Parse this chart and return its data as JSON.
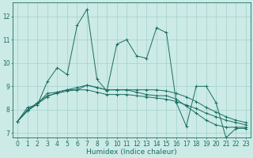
{
  "x": [
    0,
    1,
    2,
    3,
    4,
    5,
    6,
    7,
    8,
    9,
    10,
    11,
    12,
    13,
    14,
    15,
    16,
    17,
    18,
    19,
    20,
    21,
    22,
    23
  ],
  "line1": [
    7.5,
    8.1,
    8.2,
    9.2,
    9.8,
    9.5,
    11.6,
    12.3,
    9.3,
    8.8,
    10.8,
    11.0,
    10.3,
    10.2,
    11.5,
    11.3,
    8.3,
    7.3,
    9.0,
    9.0,
    8.3,
    6.8,
    7.2,
    7.2
  ],
  "line2": [
    7.5,
    8.0,
    8.3,
    8.6,
    8.7,
    8.8,
    8.85,
    8.85,
    8.75,
    8.65,
    8.65,
    8.65,
    8.6,
    8.55,
    8.5,
    8.45,
    8.35,
    8.2,
    8.05,
    7.85,
    7.7,
    7.55,
    7.45,
    7.35
  ],
  "line3": [
    7.5,
    7.95,
    8.25,
    8.7,
    8.75,
    8.85,
    8.95,
    9.05,
    8.95,
    8.85,
    8.85,
    8.85,
    8.85,
    8.85,
    8.85,
    8.8,
    8.7,
    8.55,
    8.35,
    8.1,
    7.9,
    7.7,
    7.55,
    7.45
  ],
  "line4": [
    7.5,
    7.95,
    8.25,
    8.55,
    8.75,
    8.85,
    8.85,
    9.05,
    8.95,
    8.85,
    8.85,
    8.85,
    8.75,
    8.65,
    8.6,
    8.6,
    8.45,
    8.15,
    7.85,
    7.55,
    7.35,
    7.25,
    7.25,
    7.25
  ],
  "color": "#1a6e62",
  "bg_color": "#cceae6",
  "grid_color": "#99ccc7",
  "ylim": [
    6.8,
    12.6
  ],
  "yticks": [
    7,
    8,
    9,
    10,
    11,
    12
  ],
  "xticks": [
    0,
    1,
    2,
    3,
    4,
    5,
    6,
    7,
    8,
    9,
    10,
    11,
    12,
    13,
    14,
    15,
    16,
    17,
    18,
    19,
    20,
    21,
    22,
    23
  ],
  "xlabel": "Humidex (Indice chaleur)",
  "xlabel_fontsize": 6.5,
  "tick_fontsize": 5.5,
  "linewidth": 0.7,
  "markersize": 3.0
}
